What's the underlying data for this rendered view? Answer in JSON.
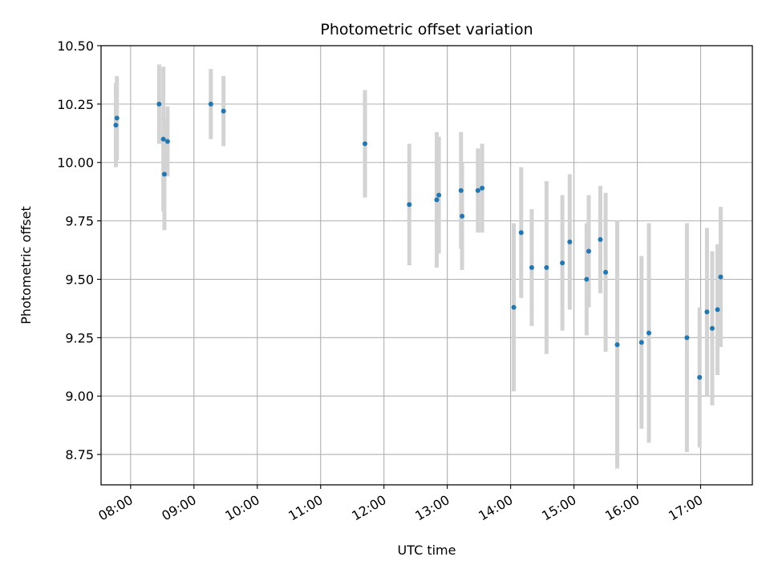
{
  "chart_data": {
    "type": "scatter",
    "title": "Photometric offset variation",
    "xlabel": "UTC time",
    "ylabel": "Photometric offset",
    "xlim": [
      "07:32",
      "17:49"
    ],
    "ylim": [
      8.62,
      10.5
    ],
    "x_ticks": [
      "08:00",
      "09:00",
      "10:00",
      "11:00",
      "12:00",
      "13:00",
      "14:00",
      "15:00",
      "16:00",
      "17:00"
    ],
    "y_ticks": [
      "8.75",
      "9.00",
      "9.25",
      "9.50",
      "9.75",
      "10.00",
      "10.25",
      "10.50"
    ],
    "grid": true,
    "colors": {
      "points": "#1f77b4",
      "error_bars": "#d3d3d3",
      "grid": "#b0b0b0"
    },
    "points": [
      {
        "x": "07:46",
        "y": 10.16,
        "yerr": 0.18
      },
      {
        "x": "07:47",
        "y": 10.19,
        "yerr": 0.18
      },
      {
        "x": "08:27",
        "y": 10.25,
        "yerr": 0.17
      },
      {
        "x": "08:31",
        "y": 10.1,
        "yerr": 0.31
      },
      {
        "x": "08:32",
        "y": 9.95,
        "yerr": 0.24
      },
      {
        "x": "08:35",
        "y": 10.09,
        "yerr": 0.15
      },
      {
        "x": "09:16",
        "y": 10.25,
        "yerr": 0.15
      },
      {
        "x": "09:28",
        "y": 10.22,
        "yerr": 0.15
      },
      {
        "x": "11:42",
        "y": 10.08,
        "yerr": 0.23
      },
      {
        "x": "12:24",
        "y": 9.82,
        "yerr": 0.26
      },
      {
        "x": "12:50",
        "y": 9.84,
        "yerr": 0.29
      },
      {
        "x": "12:52",
        "y": 9.86,
        "yerr": 0.25
      },
      {
        "x": "13:13",
        "y": 9.88,
        "yerr": 0.25
      },
      {
        "x": "13:14",
        "y": 9.77,
        "yerr": 0.23
      },
      {
        "x": "13:29",
        "y": 9.88,
        "yerr": 0.18
      },
      {
        "x": "13:33",
        "y": 9.89,
        "yerr": 0.19
      },
      {
        "x": "14:03",
        "y": 9.38,
        "yerr": 0.36
      },
      {
        "x": "14:10",
        "y": 9.7,
        "yerr": 0.28
      },
      {
        "x": "14:20",
        "y": 9.55,
        "yerr": 0.25
      },
      {
        "x": "14:34",
        "y": 9.55,
        "yerr": 0.37
      },
      {
        "x": "14:49",
        "y": 9.57,
        "yerr": 0.29
      },
      {
        "x": "14:56",
        "y": 9.66,
        "yerr": 0.29
      },
      {
        "x": "15:12",
        "y": 9.5,
        "yerr": 0.24
      },
      {
        "x": "15:14",
        "y": 9.62,
        "yerr": 0.24
      },
      {
        "x": "15:25",
        "y": 9.67,
        "yerr": 0.23
      },
      {
        "x": "15:30",
        "y": 9.53,
        "yerr": 0.34
      },
      {
        "x": "15:41",
        "y": 9.22,
        "yerr": 0.53
      },
      {
        "x": "16:04",
        "y": 9.23,
        "yerr": 0.37
      },
      {
        "x": "16:11",
        "y": 9.27,
        "yerr": 0.47
      },
      {
        "x": "16:47",
        "y": 9.25,
        "yerr": 0.49
      },
      {
        "x": "16:59",
        "y": 9.08,
        "yerr": 0.3
      },
      {
        "x": "17:06",
        "y": 9.36,
        "yerr": 0.36
      },
      {
        "x": "17:11",
        "y": 9.29,
        "yerr": 0.33
      },
      {
        "x": "17:16",
        "y": 9.37,
        "yerr": 0.28
      },
      {
        "x": "17:19",
        "y": 9.51,
        "yerr": 0.3
      }
    ]
  }
}
